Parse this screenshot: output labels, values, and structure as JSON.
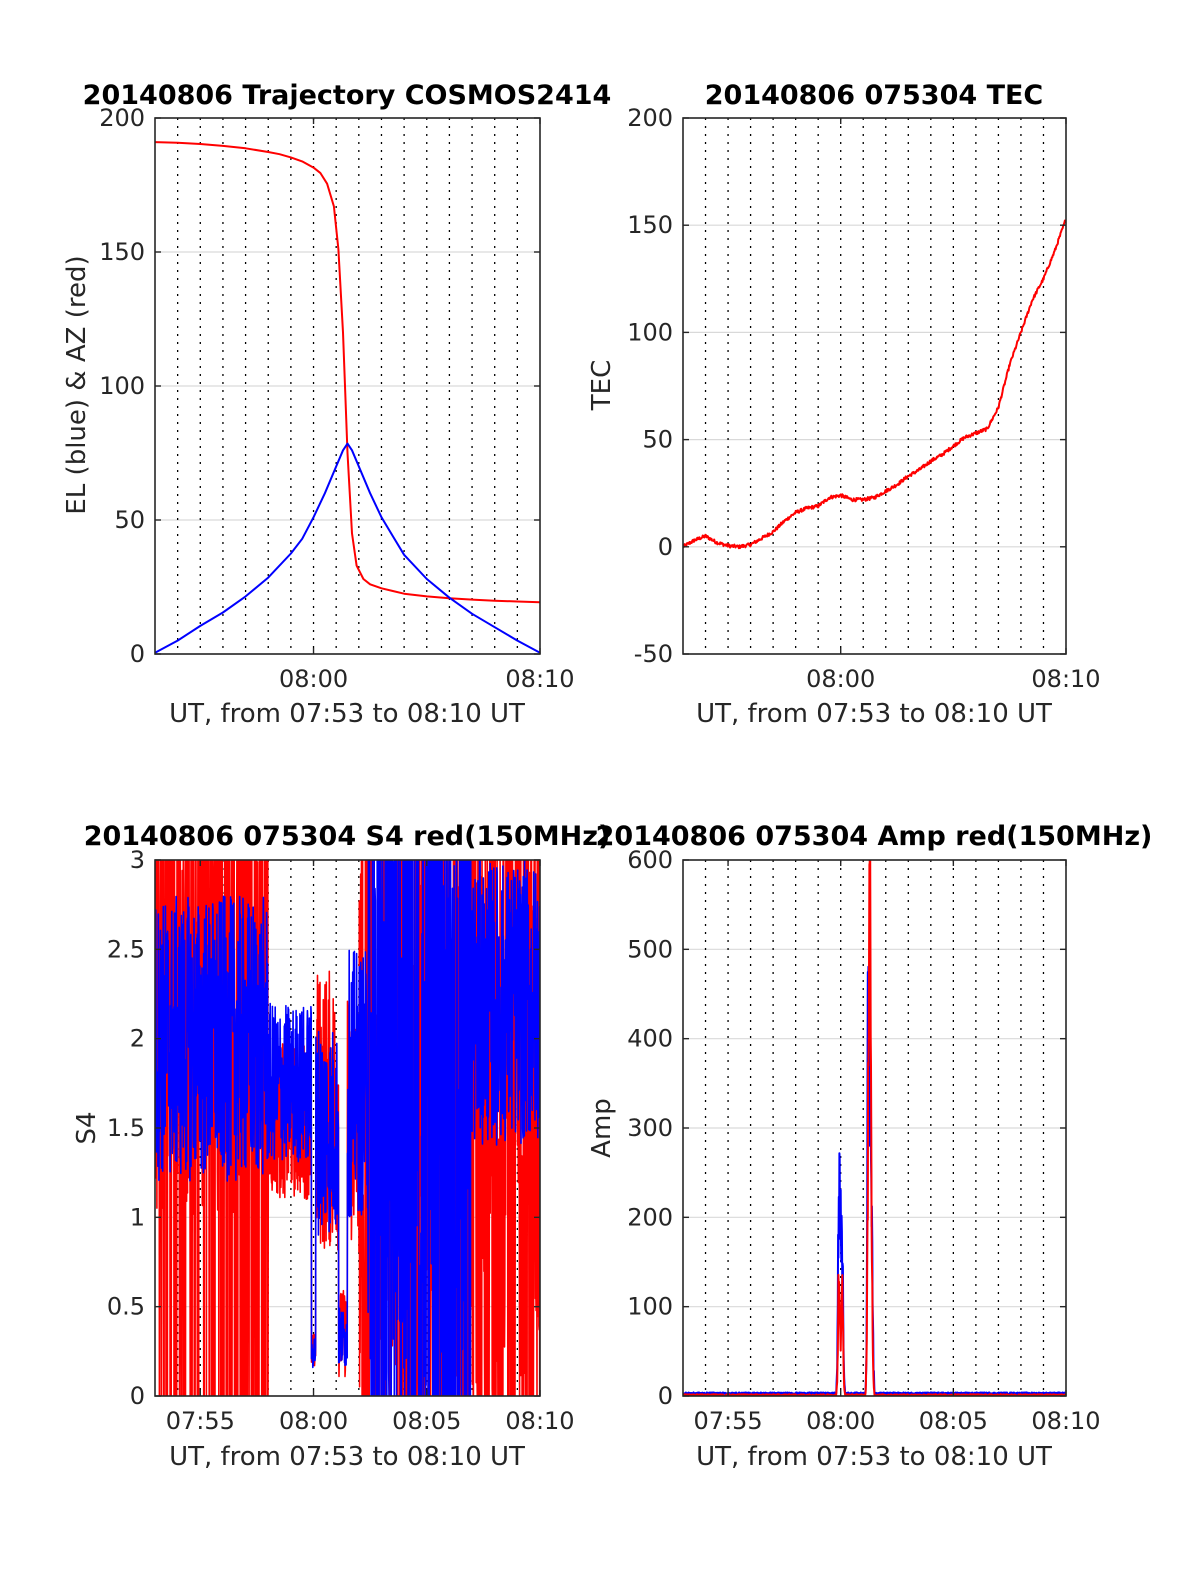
{
  "figure": {
    "colors": {
      "red": "#ff0000",
      "blue": "#0000ff",
      "axis": "#262626",
      "grid": "#d9d9d9",
      "vgrid": "#000000"
    }
  },
  "chart_data": [
    {
      "type": "line",
      "title": "20140806 Trajectory COSMOS2414",
      "xlabel": "UT, from 07:53 to 08:10 UT",
      "ylabel": "EL (blue) & AZ (red)",
      "xlim": [
        53,
        70
      ],
      "ylim": [
        0,
        200
      ],
      "xticks": [
        {
          "v": 60,
          "label": "08:00"
        },
        {
          "v": 70,
          "label": "08:10"
        }
      ],
      "yticks": [
        0,
        50,
        100,
        150,
        200
      ],
      "vgrid": [
        54,
        55,
        56,
        57,
        58,
        59,
        60,
        61,
        62,
        63,
        64,
        65,
        66,
        67,
        68,
        69
      ],
      "hgrid": true,
      "series": [
        {
          "color": "red",
          "kind": "az",
          "x": [
            53,
            54,
            55,
            56,
            57,
            58,
            58.5,
            59,
            59.5,
            60,
            60.3,
            60.6,
            60.9,
            61.1,
            61.3,
            61.5,
            61.7,
            61.9,
            62.2,
            62.5,
            63,
            63.5,
            64,
            65,
            66,
            67,
            68,
            69,
            70
          ],
          "y": [
            191,
            190.8,
            190.3,
            189.6,
            188.7,
            187.3,
            186.5,
            185.3,
            183.8,
            181.5,
            179.5,
            175.5,
            167,
            151,
            120,
            75,
            45,
            33,
            28,
            26,
            24.5,
            23.5,
            22.5,
            21.5,
            20.8,
            20.3,
            19.9,
            19.6,
            19.3
          ]
        },
        {
          "color": "blue",
          "kind": "el",
          "x": [
            53,
            54,
            55,
            56,
            57,
            58,
            59,
            59.5,
            60,
            60.5,
            61,
            61.3,
            61.5,
            61.7,
            62,
            62.5,
            63,
            63.5,
            64,
            65,
            66,
            67,
            68,
            69,
            70
          ],
          "y": [
            0.5,
            5,
            10.5,
            15.5,
            21.5,
            28.5,
            37.5,
            43,
            51,
            60,
            70,
            76,
            78.5,
            76,
            70,
            60,
            51,
            44,
            37,
            28,
            21,
            15,
            10,
            5,
            0.5
          ]
        }
      ]
    },
    {
      "type": "line",
      "title": "20140806 075304 TEC",
      "xlabel": "UT, from 07:53 to 08:10 UT",
      "ylabel": "TEC",
      "xlim": [
        53,
        70
      ],
      "ylim": [
        -50,
        200
      ],
      "xticks": [
        {
          "v": 60,
          "label": "08:00"
        },
        {
          "v": 70,
          "label": "08:10"
        }
      ],
      "yticks": [
        -50,
        0,
        50,
        100,
        150,
        200
      ],
      "vgrid": [
        54,
        55,
        56,
        57,
        58,
        59,
        60,
        61,
        62,
        63,
        64,
        65,
        66,
        67,
        68,
        69
      ],
      "hgrid": true,
      "series": [
        {
          "color": "red",
          "x": [
            53,
            53.5,
            54,
            54.5,
            55,
            55.5,
            56,
            56.5,
            57,
            57.5,
            58,
            58.5,
            59,
            59.5,
            60,
            60.5,
            61,
            61.5,
            62,
            62.5,
            63,
            63.5,
            64,
            64.5,
            65,
            65.5,
            66,
            66.5,
            67,
            67.5,
            68,
            68.5,
            69,
            69.5,
            70
          ],
          "y": [
            0,
            3,
            5,
            2,
            0.5,
            0,
            1,
            4,
            7,
            12,
            16,
            18,
            19,
            23,
            24,
            22,
            22,
            23,
            26,
            29,
            33,
            36,
            40,
            43,
            47,
            51,
            53,
            55,
            65,
            85,
            100,
            115,
            125,
            138,
            153
          ]
        }
      ]
    },
    {
      "type": "line",
      "title": "20140806 075304 S4 red(150MHz)",
      "xlabel": "UT, from 07:53 to 08:10 UT",
      "ylabel": "S4",
      "xlim": [
        53,
        70
      ],
      "ylim": [
        0,
        3
      ],
      "xticks": [
        {
          "v": 55,
          "label": "07:55"
        },
        {
          "v": 60,
          "label": "08:00"
        },
        {
          "v": 65,
          "label": "08:05"
        },
        {
          "v": 70,
          "label": "08:10"
        }
      ],
      "yticks": [
        0,
        0.5,
        1,
        1.5,
        2,
        2.5,
        3
      ],
      "vgrid": [
        54,
        55,
        56,
        57,
        58,
        59,
        60,
        61,
        62,
        63,
        64,
        65,
        66,
        67,
        68,
        69
      ],
      "hgrid": true,
      "noisy": true,
      "series": [
        {
          "color": "red",
          "kind": "s4red"
        },
        {
          "color": "blue",
          "kind": "s4blue"
        }
      ]
    },
    {
      "type": "line",
      "title": "20140806 075304 Amp red(150MHz)",
      "xlabel": "UT, from 07:53 to 08:10 UT",
      "ylabel": "Amp",
      "xlim": [
        53,
        70
      ],
      "ylim": [
        0,
        600
      ],
      "xticks": [
        {
          "v": 55,
          "label": "07:55"
        },
        {
          "v": 60,
          "label": "08:00"
        },
        {
          "v": 65,
          "label": "08:05"
        },
        {
          "v": 70,
          "label": "08:10"
        }
      ],
      "yticks": [
        0,
        100,
        200,
        300,
        400,
        500,
        600
      ],
      "vgrid": [
        54,
        55,
        56,
        57,
        58,
        59,
        60,
        61,
        62,
        63,
        64,
        65,
        66,
        67,
        68,
        69
      ],
      "hgrid": true,
      "series": [
        {
          "color": "blue",
          "x": [
            53,
            59.8,
            59.85,
            59.9,
            59.95,
            60.0,
            60.05,
            60.1,
            60.15,
            60.2,
            61.1,
            61.15,
            61.2,
            61.25,
            61.3,
            61.35,
            61.4,
            61.45,
            61.5,
            70
          ],
          "y": [
            2,
            2,
            40,
            200,
            240,
            225,
            160,
            120,
            20,
            2,
            2,
            60,
            400,
            410,
            370,
            300,
            180,
            40,
            2,
            2
          ]
        },
        {
          "color": "red",
          "x": [
            53,
            59.8,
            59.85,
            59.9,
            59.95,
            60.0,
            60.05,
            60.1,
            60.15,
            60.2,
            61.1,
            61.15,
            61.2,
            61.25,
            61.3,
            61.35,
            61.4,
            61.45,
            61.5,
            70
          ],
          "y": [
            0,
            0,
            20,
            120,
            100,
            60,
            140,
            80,
            10,
            0,
            0,
            40,
            250,
            500,
            585,
            300,
            120,
            20,
            0,
            0
          ]
        }
      ]
    }
  ]
}
